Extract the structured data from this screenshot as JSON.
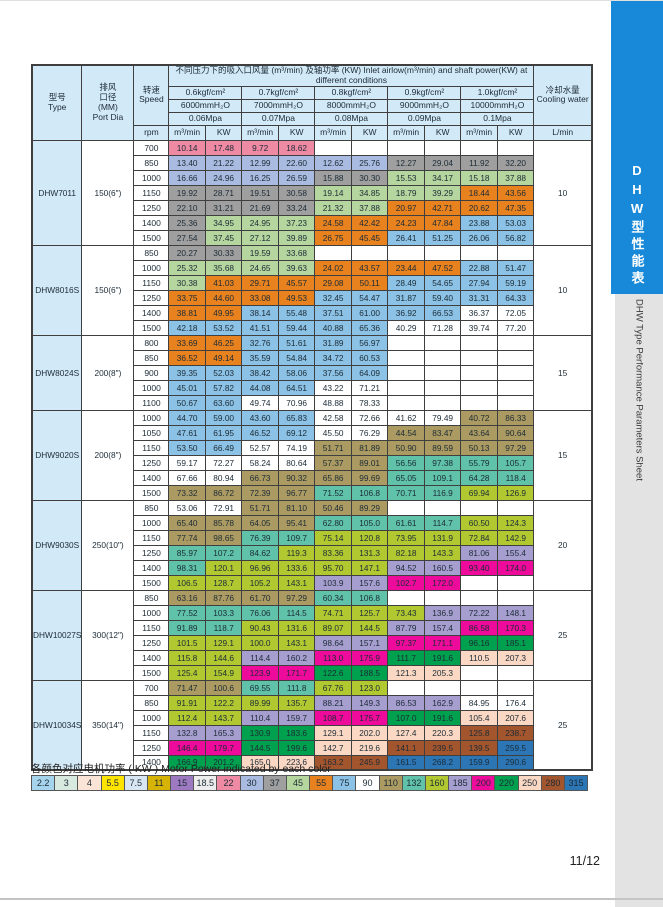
{
  "sidebar": {
    "tab_title": "DHW型性能表",
    "subtitle": "DHW Type Performance Parameters Sheet",
    "tab_color": "#1888d8"
  },
  "page_number": "11/12",
  "legend": {
    "title": "各颜色对应电机功率 ( KW ) Motor Power indicated by each color",
    "items": [
      {
        "label": "2.2",
        "color": "#a6d4ec"
      },
      {
        "label": "3",
        "color": "#d8e9e0"
      },
      {
        "label": "4",
        "color": "#fae4d5"
      },
      {
        "label": "5.5",
        "color": "#ffe400"
      },
      {
        "label": "7.5",
        "color": "#d8e6f3"
      },
      {
        "label": "11",
        "color": "#d6b305"
      },
      {
        "label": "15",
        "color": "#9c79c1"
      },
      {
        "label": "18.5",
        "color": "#ededed"
      },
      {
        "label": "22",
        "color": "#ee8aa4"
      },
      {
        "label": "30",
        "color": "#a9bbe0"
      },
      {
        "label": "37",
        "color": "#9f9f9f"
      },
      {
        "label": "45",
        "color": "#b5d69e"
      },
      {
        "label": "55",
        "color": "#e8821f"
      },
      {
        "label": "75",
        "color": "#8cc2e5"
      },
      {
        "label": "90",
        "color": "#ffffff"
      },
      {
        "label": "110",
        "color": "#ab9b62"
      },
      {
        "label": "132",
        "color": "#5fc2a9"
      },
      {
        "label": "160",
        "color": "#b1c831"
      },
      {
        "label": "185",
        "color": "#a79ed0"
      },
      {
        "label": "200",
        "color": "#ee0b9b"
      },
      {
        "label": "220",
        "color": "#00a14e"
      },
      {
        "label": "250",
        "color": "#fad8c3"
      },
      {
        "label": "280",
        "color": "#a3562e"
      },
      {
        "label": "315",
        "color": "#2c76b6"
      }
    ]
  },
  "table": {
    "colors": {
      "22": "#ee8aa4",
      "30": "#a9bbe0",
      "37": "#9f9f9f",
      "45": "#b5d69e",
      "55": "#e8821f",
      "75": "#8cc2e5",
      "90": "#ffffff",
      "110": "#ab9b62",
      "132": "#5fc2a9",
      "160": "#b1c831",
      "185": "#a79ed0",
      "200": "#ee0b9b",
      "220": "#00a14e",
      "250": "#fad8c3",
      "280": "#a3562e",
      "315": "#2c76b6"
    },
    "header": {
      "model": "型号\nType",
      "port": "排风\n口径\n(MM)\nPort Dia",
      "speed": "转速\nSpeed",
      "rpm": "rpm",
      "title": "不同压力下的吸入口风量 (m³/min) 及轴功率 (KW) Inlet airlow(m³/min) and shaft power(KW) at different conditions",
      "cooling": "冷却水量\nCooling water",
      "lmin": "L/min",
      "unit_flow": "m³/min",
      "unit_kw": "KW"
    },
    "pressure_groups": [
      {
        "kgf": "0.6kgf/cm²",
        "mmh2o": "6000mmH₂O",
        "mpa": "0.06Mpa"
      },
      {
        "kgf": "0.7kgf/cm²",
        "mmh2o": "7000mmH₂O",
        "mpa": "0.07Mpa"
      },
      {
        "kgf": "0.8kgf/cm²",
        "mmh2o": "8000mmH₂O",
        "mpa": "0.08Mpa"
      },
      {
        "kgf": "0.9kgf/cm²",
        "mmh2o": "9000mmH₂O",
        "mpa": "0.09Mpa"
      },
      {
        "kgf": "1.0kgf/cm²",
        "mmh2o": "10000mmH₂O",
        "mpa": "0.1Mpa"
      }
    ],
    "models": [
      {
        "type": "DHW7011",
        "port": "150(6\")",
        "cooling": "10",
        "rows": [
          {
            "rpm": "700",
            "v": [
              "10.14|22",
              "17.48|22",
              "9.72|22",
              "18.62|22",
              "",
              "",
              "",
              "",
              "",
              ""
            ]
          },
          {
            "rpm": "850",
            "v": [
              "13.40|30",
              "21.22|30",
              "12.99|30",
              "22.60|30",
              "12.62|30",
              "25.76|30",
              "12.27|37",
              "29.04|37",
              "11.92|37",
              "32.20|37"
            ]
          },
          {
            "rpm": "1000",
            "v": [
              "16.66|30",
              "24.96|30",
              "16.25|30",
              "26.59|30",
              "15.88|37",
              "30.30|37",
              "15.53|45",
              "34.17|45",
              "15.18|45",
              "37.88|45"
            ]
          },
          {
            "rpm": "1150",
            "v": [
              "19.92|37",
              "28.71|37",
              "19.51|37",
              "30.58|37",
              "19.14|45",
              "34.85|45",
              "18.79|45",
              "39.29|45",
              "18.44|55",
              "43.56|55"
            ]
          },
          {
            "rpm": "1250",
            "v": [
              "22.10|37",
              "31.21|37",
              "21.69|37",
              "33.24|37",
              "21.32|45",
              "37.88|45",
              "20.97|55",
              "42.71|55",
              "20.62|55",
              "47.35|55"
            ]
          },
          {
            "rpm": "1400",
            "v": [
              "25.36|37",
              "34.95|45",
              "24.95|45",
              "37.23|45",
              "24.58|55",
              "42.42|55",
              "24.23|55",
              "47.84|55",
              "23.88|75",
              "53.03|75"
            ]
          },
          {
            "rpm": "1500",
            "v": [
              "27.54|37",
              "37.45|45",
              "27.12|45",
              "39.89|45",
              "26.75|55",
              "45.45|55",
              "26.41|75",
              "51.25|75",
              "26.06|75",
              "56.82|75"
            ]
          }
        ]
      },
      {
        "type": "DHW8016S",
        "port": "150(6\")",
        "cooling": "10",
        "rows": [
          {
            "rpm": "850",
            "v": [
              "20.27|37",
              "30.33|37",
              "19.59|45",
              "33.68|45",
              "",
              "",
              "",
              "",
              "",
              ""
            ]
          },
          {
            "rpm": "1000",
            "v": [
              "25.32|45",
              "35.68|45",
              "24.65|45",
              "39.63|45",
              "24.02|55",
              "43.57|55",
              "23.44|55",
              "47.52|55",
              "22.88|75",
              "51.47|75"
            ]
          },
          {
            "rpm": "1150",
            "v": [
              "30.38|45",
              "41.03|55",
              "29.71|55",
              "45.57|55",
              "29.08|55",
              "50.11|55",
              "28.49|75",
              "54.65|75",
              "27.94|75",
              "59.19|75"
            ]
          },
          {
            "rpm": "1250",
            "v": [
              "33.75|55",
              "44.60|55",
              "33.08|55",
              "49.53|55",
              "32.45|75",
              "54.47|75",
              "31.87|75",
              "59.40|75",
              "31.31|75",
              "64.33|75"
            ]
          },
          {
            "rpm": "1400",
            "v": [
              "38.81|55",
              "49.95|55",
              "38.14|75",
              "55.48|75",
              "37.51|75",
              "61.00|75",
              "36.92|75",
              "66.53|75",
              "36.37|90",
              "72.05|90"
            ]
          },
          {
            "rpm": "1500",
            "v": [
              "42.18|75",
              "53.52|75",
              "41.51|75",
              "59.44|75",
              "40.88|75",
              "65.36|75",
              "40.29|90",
              "71.28|90",
              "39.74|90",
              "77.20|90"
            ]
          }
        ]
      },
      {
        "type": "DHW8024S",
        "port": "200(8\")",
        "cooling": "15",
        "rows": [
          {
            "rpm": "800",
            "v": [
              "33.69|55",
              "46.25|55",
              "32.76|75",
              "51.61|75",
              "31.89|75",
              "56.97|75",
              "",
              "",
              "",
              ""
            ]
          },
          {
            "rpm": "850",
            "v": [
              "36.52|55",
              "49.14|55",
              "35.59|75",
              "54.84|75",
              "34.72|75",
              "60.53|75",
              "",
              "",
              "",
              ""
            ]
          },
          {
            "rpm": "900",
            "v": [
              "39.35|75",
              "52.03|75",
              "38.42|75",
              "58.06|75",
              "37.56|75",
              "64.09|75",
              "",
              "",
              "",
              ""
            ]
          },
          {
            "rpm": "1000",
            "v": [
              "45.01|75",
              "57.82|75",
              "44.08|75",
              "64.51|75",
              "43.22|90",
              "71.21|90",
              "",
              "",
              "",
              ""
            ]
          },
          {
            "rpm": "1100",
            "v": [
              "50.67|75",
              "63.60|75",
              "49.74|90",
              "70.96|90",
              "48.88|90",
              "78.33|90",
              "",
              "",
              "",
              ""
            ]
          }
        ]
      },
      {
        "type": "DHW9020S",
        "port": "200(8\")",
        "cooling": "15",
        "rows": [
          {
            "rpm": "1000",
            "v": [
              "44.70|75",
              "59.00|75",
              "43.60|75",
              "65.83|75",
              "42.58|90",
              "72.66|90",
              "41.62|90",
              "79.49|90",
              "40.72|110",
              "86.33|110"
            ]
          },
          {
            "rpm": "1050",
            "v": [
              "47.61|75",
              "61.95|75",
              "46.52|75",
              "69.12|75",
              "45.50|90",
              "76.29|90",
              "44.54|110",
              "83.47|110",
              "43.64|110",
              "90.64|110"
            ]
          },
          {
            "rpm": "1150",
            "v": [
              "53.50|75",
              "66.49|75",
              "52.57|90",
              "74.19|90",
              "51.71|110",
              "81.89|110",
              "50.90|110",
              "89.59|110",
              "50.13|110",
              "97.29|110"
            ]
          },
          {
            "rpm": "1250",
            "v": [
              "59.17|90",
              "72.27|90",
              "58.24|90",
              "80.64|90",
              "57.37|110",
              "89.01|110",
              "56.56|132",
              "97.38|132",
              "55.79|132",
              "105.7|132"
            ]
          },
          {
            "rpm": "1400",
            "v": [
              "67.66|90",
              "80.94|90",
              "66.73|110",
              "90.32|110",
              "65.86|110",
              "99.69|110",
              "65.05|132",
              "109.1|132",
              "64.28|132",
              "118.4|132"
            ]
          },
          {
            "rpm": "1500",
            "v": [
              "73.32|110",
              "86.72|110",
              "72.39|110",
              "96.77|110",
              "71.52|132",
              "106.8|132",
              "70.71|132",
              "116.9|132",
              "69.94|160",
              "126.9|160"
            ]
          }
        ]
      },
      {
        "type": "DHW9030S",
        "port": "250(10\")",
        "cooling": "20",
        "rows": [
          {
            "rpm": "850",
            "v": [
              "53.06|90",
              "72.91|90",
              "51.71|110",
              "81.10|110",
              "50.46|110",
              "89.29|110",
              "",
              "",
              "",
              ""
            ]
          },
          {
            "rpm": "1000",
            "v": [
              "65.40|110",
              "85.78|110",
              "64.05|110",
              "95.41|110",
              "62.80|132",
              "105.0|132",
              "61.61|132",
              "114.7|132",
              "60.50|160",
              "124.3|160"
            ]
          },
          {
            "rpm": "1150",
            "v": [
              "77.74|110",
              "98.65|110",
              "76.39|132",
              "109.7|132",
              "75.14|160",
              "120.8|160",
              "73.95|160",
              "131.9|160",
              "72.84|160",
              "142.9|160"
            ]
          },
          {
            "rpm": "1250",
            "v": [
              "85.97|132",
              "107.2|132",
              "84.62|132",
              "119.3|160",
              "83.36|160",
              "131.3|160",
              "82.18|160",
              "143.3|160",
              "81.06|185",
              "155.4|185"
            ]
          },
          {
            "rpm": "1400",
            "v": [
              "98.31|132",
              "120.1|160",
              "96.96|160",
              "133.6|160",
              "95.70|160",
              "147.1|160",
              "94.52|185",
              "160.5|185",
              "93.40|200",
              "174.0|200"
            ]
          },
          {
            "rpm": "1500",
            "v": [
              "106.5|160",
              "128.7|160",
              "105.2|160",
              "143.1|160",
              "103.9|185",
              "157.6|185",
              "102.7|200",
              "172.0|200",
              "",
              ""
            ]
          }
        ]
      },
      {
        "type": "DHW10027S",
        "port": "300(12\")",
        "cooling": "25",
        "rows": [
          {
            "rpm": "850",
            "v": [
              "63.16|110",
              "87.76|110",
              "61.70|110",
              "97.29|110",
              "60.34|132",
              "106.8|132",
              "",
              "",
              "",
              ""
            ]
          },
          {
            "rpm": "1000",
            "v": [
              "77.52|132",
              "103.3|132",
              "76.06|132",
              "114.5|132",
              "74.71|160",
              "125.7|160",
              "73.43|160",
              "136.9|185",
              "72.22|185",
              "148.1|185"
            ]
          },
          {
            "rpm": "1150",
            "v": [
              "91.89|132",
              "118.7|132",
              "90.43|160",
              "131.6|160",
              "89.07|160",
              "144.5|160",
              "87.79|185",
              "157.4|185",
              "86.58|200",
              "170.3|200"
            ]
          },
          {
            "rpm": "1250",
            "v": [
              "101.5|160",
              "129.1|160",
              "100.0|160",
              "143.1|160",
              "98.64|185",
              "157.1|185",
              "97.37|200",
              "171.1|200",
              "96.16|220",
              "185.1|220"
            ]
          },
          {
            "rpm": "1400",
            "v": [
              "115.8|160",
              "144.6|160",
              "114.4|185",
              "160.2|185",
              "113.0|200",
              "175.9|200",
              "111.7|220",
              "191.6|220",
              "110.5|250",
              "207.3|250"
            ]
          },
          {
            "rpm": "1500",
            "v": [
              "125.4|160",
              "154.9|160",
              "123.9|200",
              "171.7|200",
              "122.6|220",
              "188.5|220",
              "121.3|250",
              "205.3|250",
              "",
              ""
            ]
          }
        ]
      },
      {
        "type": "DHW10034S",
        "port": "350(14\")",
        "cooling": "25",
        "rows": [
          {
            "rpm": "700",
            "v": [
              "71.47|110",
              "100.6|110",
              "69.55|132",
              "111.8|132",
              "67.76|160",
              "123.0|160",
              "",
              "",
              "",
              ""
            ]
          },
          {
            "rpm": "850",
            "v": [
              "91.91|160",
              "122.2|160",
              "89.99|160",
              "135.7|160",
              "88.21|185",
              "149.3|185",
              "86.53|185",
              "162.9|185",
              "84.95|90",
              "176.4|90"
            ]
          },
          {
            "rpm": "1000",
            "v": [
              "112.4|160",
              "143.7|160",
              "110.4|185",
              "159.7|185",
              "108.7|200",
              "175.7|200",
              "107.0|220",
              "191.6|220",
              "105.4|250",
              "207.6|250"
            ]
          },
          {
            "rpm": "1150",
            "v": [
              "132.8|185",
              "165.3|185",
              "130.9|220",
              "183.6|220",
              "129.1|250",
              "202.0|250",
              "127.4|250",
              "220.3|250",
              "125.8|280",
              "238.7|280"
            ]
          },
          {
            "rpm": "1250",
            "v": [
              "146.4|200",
              "179.7|200",
              "144.5|220",
              "199.6|220",
              "142.7|250",
              "219.6|250",
              "141.1|280",
              "239.5|280",
              "139.5|280",
              "259.5|315"
            ]
          },
          {
            "rpm": "1400",
            "v": [
              "166.9|220",
              "201.2|220",
              "165.0|250",
              "223.6|250",
              "163.2|280",
              "245.9|280",
              "161.5|315",
              "268.2|315",
              "159.9|315",
              "290.6|315"
            ]
          }
        ]
      }
    ]
  }
}
